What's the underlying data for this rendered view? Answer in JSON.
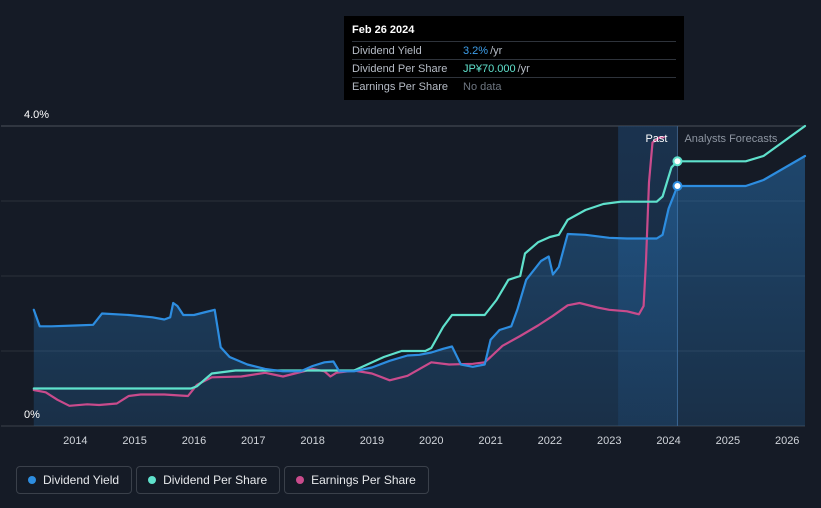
{
  "tooltip": {
    "date": "Feb 26 2024",
    "rows": [
      {
        "label": "Dividend Yield",
        "value": "3.2%",
        "unit": "/yr"
      },
      {
        "label": "Dividend Per Share",
        "value": "JP¥70.000",
        "unit": "/yr"
      },
      {
        "label": "Earnings Per Share",
        "value": "No data",
        "unit": ""
      }
    ]
  },
  "legend": [
    {
      "label": "Dividend Yield",
      "color": "#2d8de0"
    },
    {
      "label": "Dividend Per Share",
      "color": "#5fe1cc"
    },
    {
      "label": "Earnings Per Share",
      "color": "#c94b8c"
    }
  ],
  "chart_data": {
    "type": "line",
    "y_tick_labels": [
      "4.0%",
      "0%"
    ],
    "ylim": [
      0,
      4.0
    ],
    "xlim": [
      2013.0,
      2026.3
    ],
    "x_tick_labels": [
      "2014",
      "2015",
      "2016",
      "2017",
      "2018",
      "2019",
      "2020",
      "2021",
      "2022",
      "2023",
      "2024",
      "2025",
      "2026"
    ],
    "past_label": "Past",
    "forecast_label": "Analysts Forecasts",
    "past_start": 2023.15,
    "forecast_start": 2024.15,
    "grid": true,
    "legend_position": "bottom-left",
    "series": [
      {
        "name": "Dividend Yield",
        "color": "#2d8de0",
        "points": [
          [
            2013.3,
            1.55
          ],
          [
            2013.4,
            1.33
          ],
          [
            2013.6,
            1.33
          ],
          [
            2014.0,
            1.34
          ],
          [
            2014.3,
            1.35
          ],
          [
            2014.45,
            1.5
          ],
          [
            2014.9,
            1.48
          ],
          [
            2015.3,
            1.45
          ],
          [
            2015.5,
            1.42
          ],
          [
            2015.6,
            1.45
          ],
          [
            2015.65,
            1.64
          ],
          [
            2015.72,
            1.6
          ],
          [
            2015.82,
            1.48
          ],
          [
            2016.0,
            1.48
          ],
          [
            2016.2,
            1.52
          ],
          [
            2016.35,
            1.55
          ],
          [
            2016.45,
            1.05
          ],
          [
            2016.6,
            0.92
          ],
          [
            2016.9,
            0.82
          ],
          [
            2017.2,
            0.76
          ],
          [
            2017.5,
            0.73
          ],
          [
            2017.8,
            0.73
          ],
          [
            2018.0,
            0.8
          ],
          [
            2018.2,
            0.85
          ],
          [
            2018.35,
            0.86
          ],
          [
            2018.45,
            0.73
          ],
          [
            2018.7,
            0.73
          ],
          [
            2019.0,
            0.78
          ],
          [
            2019.3,
            0.87
          ],
          [
            2019.6,
            0.94
          ],
          [
            2019.8,
            0.95
          ],
          [
            2020.0,
            0.98
          ],
          [
            2020.2,
            1.03
          ],
          [
            2020.35,
            1.06
          ],
          [
            2020.5,
            0.82
          ],
          [
            2020.7,
            0.79
          ],
          [
            2020.9,
            0.82
          ],
          [
            2021.0,
            1.15
          ],
          [
            2021.15,
            1.28
          ],
          [
            2021.35,
            1.33
          ],
          [
            2021.45,
            1.55
          ],
          [
            2021.6,
            1.95
          ],
          [
            2021.85,
            2.2
          ],
          [
            2021.98,
            2.26
          ],
          [
            2022.05,
            2.02
          ],
          [
            2022.15,
            2.12
          ],
          [
            2022.3,
            2.56
          ],
          [
            2022.6,
            2.55
          ],
          [
            2023.0,
            2.51
          ],
          [
            2023.3,
            2.5
          ],
          [
            2023.8,
            2.5
          ],
          [
            2023.9,
            2.55
          ],
          [
            2024.0,
            2.9
          ],
          [
            2024.15,
            3.2
          ],
          [
            2025.3,
            3.2
          ],
          [
            2025.6,
            3.28
          ],
          [
            2026.3,
            3.6
          ]
        ]
      },
      {
        "name": "Dividend Per Share",
        "color": "#5fe1cc",
        "points": [
          [
            2013.3,
            0.5
          ],
          [
            2015.95,
            0.5
          ],
          [
            2016.05,
            0.53
          ],
          [
            2016.3,
            0.7
          ],
          [
            2016.7,
            0.74
          ],
          [
            2018.7,
            0.74
          ],
          [
            2019.2,
            0.92
          ],
          [
            2019.5,
            1.0
          ],
          [
            2019.9,
            1.0
          ],
          [
            2020.0,
            1.04
          ],
          [
            2020.2,
            1.32
          ],
          [
            2020.35,
            1.48
          ],
          [
            2020.9,
            1.48
          ],
          [
            2021.1,
            1.68
          ],
          [
            2021.3,
            1.95
          ],
          [
            2021.5,
            2.0
          ],
          [
            2021.58,
            2.3
          ],
          [
            2021.8,
            2.45
          ],
          [
            2022.0,
            2.52
          ],
          [
            2022.15,
            2.55
          ],
          [
            2022.3,
            2.75
          ],
          [
            2022.6,
            2.88
          ],
          [
            2022.9,
            2.96
          ],
          [
            2023.2,
            2.99
          ],
          [
            2023.5,
            2.99
          ],
          [
            2023.8,
            2.99
          ],
          [
            2023.9,
            3.06
          ],
          [
            2024.05,
            3.45
          ],
          [
            2024.15,
            3.53
          ],
          [
            2025.3,
            3.53
          ],
          [
            2025.6,
            3.6
          ],
          [
            2026.3,
            4.0
          ]
        ]
      },
      {
        "name": "Earnings Per Share",
        "color": "#c94b8c",
        "points": [
          [
            2013.3,
            0.48
          ],
          [
            2013.5,
            0.45
          ],
          [
            2013.7,
            0.35
          ],
          [
            2013.9,
            0.27
          ],
          [
            2014.2,
            0.29
          ],
          [
            2014.4,
            0.28
          ],
          [
            2014.7,
            0.3
          ],
          [
            2014.9,
            0.4
          ],
          [
            2015.1,
            0.42
          ],
          [
            2015.5,
            0.42
          ],
          [
            2015.9,
            0.4
          ],
          [
            2016.05,
            0.55
          ],
          [
            2016.3,
            0.65
          ],
          [
            2016.8,
            0.66
          ],
          [
            2017.2,
            0.71
          ],
          [
            2017.5,
            0.66
          ],
          [
            2017.8,
            0.72
          ],
          [
            2018.0,
            0.76
          ],
          [
            2018.2,
            0.73
          ],
          [
            2018.3,
            0.66
          ],
          [
            2018.4,
            0.71
          ],
          [
            2018.7,
            0.74
          ],
          [
            2019.0,
            0.7
          ],
          [
            2019.3,
            0.61
          ],
          [
            2019.6,
            0.67
          ],
          [
            2020.0,
            0.85
          ],
          [
            2020.3,
            0.82
          ],
          [
            2020.7,
            0.83
          ],
          [
            2020.9,
            0.85
          ],
          [
            2021.0,
            0.92
          ],
          [
            2021.2,
            1.07
          ],
          [
            2021.5,
            1.2
          ],
          [
            2021.8,
            1.34
          ],
          [
            2022.05,
            1.47
          ],
          [
            2022.3,
            1.61
          ],
          [
            2022.5,
            1.64
          ],
          [
            2022.8,
            1.58
          ],
          [
            2023.0,
            1.55
          ],
          [
            2023.3,
            1.53
          ],
          [
            2023.5,
            1.49
          ],
          [
            2023.58,
            1.6
          ],
          [
            2023.62,
            2.2
          ],
          [
            2023.67,
            3.25
          ],
          [
            2023.73,
            3.78
          ],
          [
            2023.85,
            3.85
          ],
          [
            2023.92,
            3.85
          ]
        ]
      }
    ],
    "markers": [
      {
        "series": "Dividend Yield",
        "x": 2024.15,
        "y": 3.2
      },
      {
        "series": "Dividend Per Share",
        "x": 2024.15,
        "y": 3.53
      }
    ]
  }
}
